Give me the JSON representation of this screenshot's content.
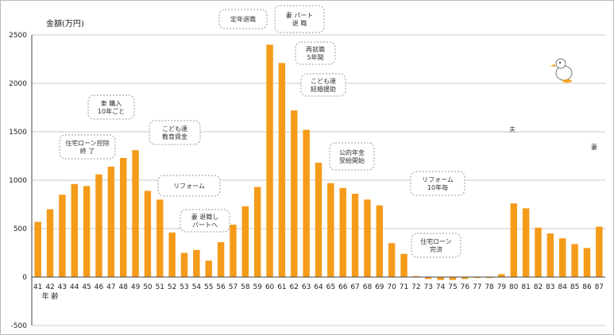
{
  "chart_data": {
    "type": "bar",
    "ylabel": "金額(万円)",
    "xlabel": "年 齢",
    "ylim": [
      -500,
      2500
    ],
    "yticks": [
      -500,
      0,
      500,
      1000,
      1500,
      2000,
      2500
    ],
    "grid": true,
    "bar_color": "#f59b1a",
    "categories": [
      "41",
      "42",
      "43",
      "44",
      "45",
      "46",
      "47",
      "48",
      "49",
      "50",
      "51",
      "52",
      "53",
      "54",
      "55",
      "56",
      "57",
      "58",
      "59",
      "60",
      "61",
      "62",
      "63",
      "64",
      "65",
      "66",
      "67",
      "68",
      "69",
      "70",
      "71",
      "72",
      "73",
      "74",
      "75",
      "76",
      "77",
      "78",
      "79",
      "80",
      "81",
      "82",
      "83",
      "84",
      "85",
      "86",
      "87"
    ],
    "values": [
      570,
      700,
      850,
      960,
      940,
      1060,
      1140,
      1230,
      1310,
      890,
      800,
      460,
      250,
      280,
      170,
      360,
      540,
      730,
      930,
      2400,
      2210,
      1720,
      1520,
      1180,
      970,
      920,
      860,
      800,
      740,
      350,
      240,
      10,
      -20,
      -30,
      -30,
      -20,
      -10,
      -10,
      30,
      760,
      710,
      510,
      450,
      400,
      340,
      300,
      520
    ],
    "annotations": [
      {
        "text": "住宅ローン控除\n終 了",
        "category": "44"
      },
      {
        "text": "車 購入\n10年ごと",
        "category": "47"
      },
      {
        "text": "こども達\n教育資金",
        "category": "51"
      },
      {
        "text": "リフォーム",
        "category": "53"
      },
      {
        "text": "妻 退職し\nパートへ",
        "category": "55"
      },
      {
        "text": "定年退職",
        "category": "60"
      },
      {
        "text": "妻 パート\n退 職",
        "category": "61"
      },
      {
        "text": "再就職\n5年間",
        "category": "61"
      },
      {
        "text": "こども達\n結婚援助",
        "category": "62"
      },
      {
        "text": "公的年金\n受給開始",
        "category": "65"
      },
      {
        "text": "リフォーム\n10年毎",
        "category": "72"
      },
      {
        "text": "住宅ローン\n完済",
        "category": "73"
      },
      {
        "text": "夫",
        "category": "79"
      },
      {
        "text": "妻",
        "category": "87"
      }
    ]
  }
}
